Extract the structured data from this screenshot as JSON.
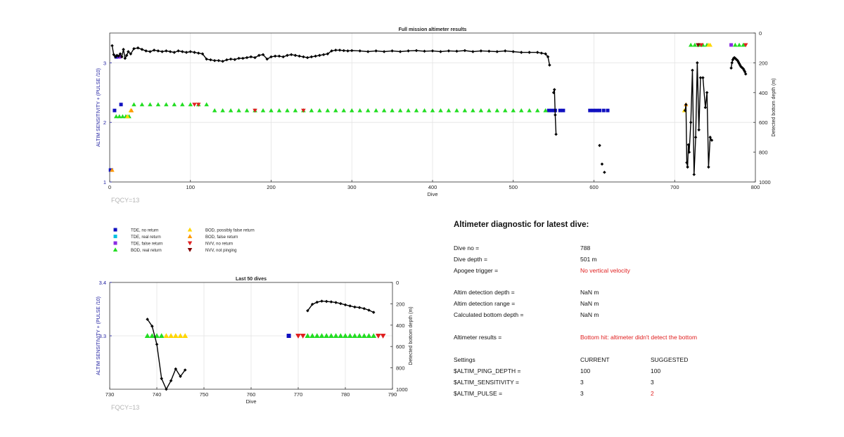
{
  "colors": {
    "tde_no_return": "#1010c0",
    "tde_real_return": "#00c0e0",
    "tde_false_return": "#8a2be2",
    "bod_real_return": "#22dd22",
    "bod_possibly_false_return": "#ffd700",
    "bod_false_return": "#ff9900",
    "nvv_no_return": "#e02020",
    "nvv_not_pinging": "#800000",
    "left_axis": "#2020a0",
    "depth_line": "#000000",
    "warning_text": "#e02020"
  },
  "legend": [
    {
      "label": "TDE, no return",
      "marker": "square",
      "color": "#1010c0"
    },
    {
      "label": "TDE, real return",
      "marker": "square",
      "color": "#00c0e0"
    },
    {
      "label": "TDE, false return",
      "marker": "square",
      "color": "#8a2be2"
    },
    {
      "label": "BOD, real return",
      "marker": "triangle-up",
      "color": "#22dd22"
    },
    {
      "label": "BOD, possibly false return",
      "marker": "triangle-up",
      "color": "#ffd700"
    },
    {
      "label": "BOD, false return",
      "marker": "triangle-up",
      "color": "#ff9900"
    },
    {
      "label": "NVV, no return",
      "marker": "triangle-down",
      "color": "#e02020"
    },
    {
      "label": "NVV, not pinging",
      "marker": "triangle-down",
      "color": "#800000"
    }
  ],
  "chart_data": [
    {
      "type": "scatter",
      "title": "Full mission altimeter results",
      "xlabel": "Dive",
      "ylabel_left": "ALTIM SENSITIVITY + (PULSE /10)",
      "ylabel_right": "Detected bottom depth (m)",
      "xlim": [
        0,
        800
      ],
      "ylim_left": [
        1,
        3.5
      ],
      "ylim_right": [
        0,
        1000
      ],
      "right_axis_reversed": true,
      "xticks": [
        "0",
        "100",
        "200",
        "300",
        "400",
        "500",
        "600",
        "700",
        "800"
      ],
      "yticks_left": [
        "1",
        "2",
        "3"
      ],
      "yticks_right": [
        "0",
        "200",
        "400",
        "600",
        "800",
        "1000"
      ],
      "grid": true,
      "annotation": "FQCY=13",
      "depth_series": [
        {
          "x": [
            3,
            5,
            7,
            9,
            11,
            13,
            15,
            17,
            19,
            21,
            23,
            26,
            30,
            35,
            40,
            45,
            50,
            55,
            60,
            65,
            70,
            75,
            80,
            85,
            90,
            95,
            100,
            105,
            110,
            115,
            120,
            125,
            130,
            135,
            140,
            145,
            150,
            155,
            160,
            165,
            170,
            175,
            180,
            185,
            190,
            195,
            200,
            205,
            210,
            215,
            220,
            225,
            230,
            235,
            240,
            245,
            250,
            255,
            260,
            265,
            270,
            275,
            280,
            285,
            290,
            295,
            300,
            310,
            320,
            330,
            340,
            350,
            360,
            370,
            380,
            390,
            400,
            410,
            420,
            430,
            440,
            450,
            460,
            470,
            480,
            490,
            500,
            510,
            520,
            530,
            535,
            540,
            543,
            545
          ],
          "y": [
            85,
            145,
            160,
            150,
            155,
            140,
            160,
            110,
            170,
            150,
            125,
            140,
            105,
            100,
            110,
            120,
            125,
            115,
            120,
            125,
            120,
            125,
            130,
            120,
            125,
            130,
            125,
            130,
            135,
            140,
            175,
            180,
            185,
            185,
            190,
            180,
            175,
            178,
            170,
            170,
            165,
            160,
            165,
            150,
            145,
            175,
            160,
            155,
            155,
            160,
            150,
            145,
            150,
            155,
            160,
            165,
            160,
            155,
            150,
            145,
            140,
            120,
            115,
            115,
            118,
            120,
            118,
            120,
            125,
            120,
            125,
            120,
            125,
            120,
            118,
            122,
            120,
            125,
            120,
            122,
            118,
            125,
            120,
            122,
            125,
            120,
            125,
            130,
            130,
            130,
            135,
            140,
            160,
            215
          ]
        },
        {
          "x": [
            550,
            551,
            552,
            553
          ],
          "y": [
            400,
            380,
            550,
            680
          ]
        },
        {
          "x": [
            607
          ],
          "y": [
            755
          ]
        },
        {
          "x": [
            610
          ],
          "y": [
            880
          ]
        },
        {
          "x": [
            613
          ],
          "y": [
            935
          ]
        },
        {
          "x": [
            713,
            714,
            715,
            716,
            717,
            718,
            720,
            722,
            724,
            726,
            728,
            730,
            732,
            735,
            738,
            740,
            742,
            744,
            746
          ],
          "y": [
            520,
            480,
            870,
            900,
            750,
            800,
            600,
            250,
            950,
            700,
            200,
            650,
            300,
            300,
            500,
            400,
            900,
            700,
            720
          ]
        },
        {
          "x": [
            770,
            771,
            772,
            773,
            774,
            775,
            776,
            777,
            778,
            779,
            780,
            781,
            782,
            783,
            784,
            785,
            786,
            787,
            788
          ],
          "y": [
            235,
            200,
            180,
            170,
            165,
            170,
            175,
            180,
            185,
            195,
            205,
            215,
            225,
            230,
            235,
            240,
            250,
            260,
            275
          ]
        }
      ],
      "markers": [
        {
          "kind": "tde_no_return",
          "x": [
            1,
            2,
            6,
            8,
            10,
            14,
            544,
            548,
            552,
            558,
            562,
            595,
            599,
            603,
            607,
            612,
            617
          ],
          "y": [
            1.2,
            1.2,
            2.2,
            3.1,
            3.1,
            2.3,
            2.2,
            2.2,
            2.2,
            2.2,
            2.2,
            2.2,
            2.2,
            2.2,
            2.2,
            2.2,
            2.2
          ]
        },
        {
          "kind": "tde_false_return",
          "x": [
            12,
            770
          ],
          "y": [
            3.1,
            3.3
          ]
        },
        {
          "kind": "bod_real_return",
          "x": [
            8,
            12,
            16,
            20,
            24,
            30,
            40,
            50,
            60,
            70,
            80,
            90,
            100,
            110,
            120,
            130,
            140,
            150,
            160,
            170,
            180,
            190,
            200,
            210,
            220,
            230,
            240,
            250,
            260,
            270,
            280,
            290,
            300,
            310,
            320,
            330,
            340,
            350,
            360,
            370,
            380,
            390,
            400,
            410,
            420,
            430,
            440,
            450,
            460,
            470,
            480,
            490,
            500,
            510,
            520,
            530,
            540,
            720,
            725,
            730,
            735,
            740,
            775,
            780,
            785
          ],
          "y": [
            2.1,
            2.1,
            2.1,
            2.1,
            2.1,
            2.3,
            2.3,
            2.3,
            2.3,
            2.3,
            2.3,
            2.3,
            2.3,
            2.3,
            2.3,
            2.2,
            2.2,
            2.2,
            2.2,
            2.2,
            2.2,
            2.2,
            2.2,
            2.2,
            2.2,
            2.2,
            2.2,
            2.2,
            2.2,
            2.2,
            2.2,
            2.2,
            2.2,
            2.2,
            2.2,
            2.2,
            2.2,
            2.2,
            2.2,
            2.2,
            2.2,
            2.2,
            2.2,
            2.2,
            2.2,
            2.2,
            2.2,
            2.2,
            2.2,
            2.2,
            2.2,
            2.2,
            2.2,
            2.2,
            2.2,
            2.2,
            2.2,
            3.3,
            3.3,
            3.3,
            3.3,
            3.3,
            3.3,
            3.3,
            3.3
          ]
        },
        {
          "kind": "bod_possibly_false_return",
          "x": [
            22,
            26,
            712,
            742,
            744
          ],
          "y": [
            2.1,
            2.2,
            2.2,
            3.3,
            3.3
          ]
        },
        {
          "kind": "bod_false_return",
          "x": [
            3,
            27,
            714
          ],
          "y": [
            1.2,
            2.2,
            2.3
          ]
        },
        {
          "kind": "nvv_no_return",
          "x": [
            105,
            110,
            180,
            240,
            733,
            788
          ],
          "y": [
            2.3,
            2.3,
            2.2,
            2.2,
            3.3,
            3.3
          ]
        },
        {
          "kind": "nvv_not_pinging",
          "x": [
            729
          ],
          "y": [
            3.3
          ]
        }
      ]
    },
    {
      "type": "scatter",
      "title": "Last 50 dives",
      "xlabel": "Dive",
      "ylabel_left": "ALTIM SENSITIVITY + (PULSE /10)",
      "ylabel_right": "Detected bottom depth (m)",
      "xlim": [
        730,
        790
      ],
      "ylim_left": [
        3.2,
        3.4
      ],
      "ylim_right": [
        0,
        1000
      ],
      "right_axis_reversed": true,
      "xticks": [
        "730",
        "740",
        "750",
        "760",
        "770",
        "780",
        "790"
      ],
      "yticks_left": [
        "3.3",
        "3.4"
      ],
      "yticks_right": [
        "0",
        "200",
        "400",
        "600",
        "800",
        "1000"
      ],
      "grid": true,
      "annotation": "FQCY=13",
      "depth_series": [
        {
          "x": [
            738,
            739,
            740,
            741,
            742,
            743,
            744,
            745,
            746
          ],
          "y": [
            345,
            410,
            580,
            900,
            1000,
            920,
            810,
            880,
            820
          ]
        },
        {
          "x": [
            772,
            773,
            774,
            775,
            776,
            777,
            778,
            779,
            780,
            781,
            782,
            783,
            784,
            785,
            786
          ],
          "y": [
            265,
            205,
            185,
            175,
            178,
            182,
            188,
            198,
            210,
            220,
            230,
            235,
            245,
            260,
            280
          ]
        }
      ],
      "markers": [
        {
          "kind": "tde_no_return",
          "x": [
            768
          ],
          "y": [
            3.3
          ]
        },
        {
          "kind": "bod_real_return",
          "x": [
            738,
            739,
            740,
            741,
            772,
            773,
            774,
            775,
            776,
            777,
            778,
            779,
            780,
            781,
            782,
            783,
            784,
            785,
            786
          ],
          "y": [
            3.3,
            3.3,
            3.3,
            3.3,
            3.3,
            3.3,
            3.3,
            3.3,
            3.3,
            3.3,
            3.3,
            3.3,
            3.3,
            3.3,
            3.3,
            3.3,
            3.3,
            3.3,
            3.3
          ]
        },
        {
          "kind": "bod_possibly_false_return",
          "x": [
            742,
            743,
            744,
            745,
            746
          ],
          "y": [
            3.3,
            3.3,
            3.3,
            3.3,
            3.3
          ]
        },
        {
          "kind": "nvv_no_return",
          "x": [
            770,
            771,
            787,
            788
          ],
          "y": [
            3.3,
            3.3,
            3.3,
            3.3
          ]
        }
      ]
    }
  ],
  "diagnostic": {
    "title": "Altimeter diagnostic for latest dive:",
    "dive_no_label": "Dive no =",
    "dive_no_value": "788",
    "dive_depth_label": "Dive depth =",
    "dive_depth_value": "501 m",
    "apogee_label": "Apogee trigger =",
    "apogee_value": "No vertical velocity",
    "altim_detection_depth_label": "Altim detection depth =",
    "altim_detection_depth_value": "NaN m",
    "altim_detection_range_label": "Altim detection range =",
    "altim_detection_range_value": "NaN m",
    "calculated_bottom_depth_label": "Calculated bottom depth =",
    "calculated_bottom_depth_value": "NaN m",
    "altimeter_results_label": "Altimeter results =",
    "altimeter_results_value": "Bottom hit: altimeter didn't detect the bottom",
    "settings_label": "Settings",
    "current_label": "CURRENT",
    "suggested_label": "SUGGESTED",
    "settings": [
      {
        "name": "$ALTIM_PING_DEPTH =",
        "current": "100",
        "suggested": "100",
        "suggested_changed": false
      },
      {
        "name": "$ALTIM_SENSITIVITY =",
        "current": "3",
        "suggested": "3",
        "suggested_changed": false
      },
      {
        "name": "$ALTIM_PULSE =",
        "current": "3",
        "suggested": "2",
        "suggested_changed": true
      }
    ]
  }
}
